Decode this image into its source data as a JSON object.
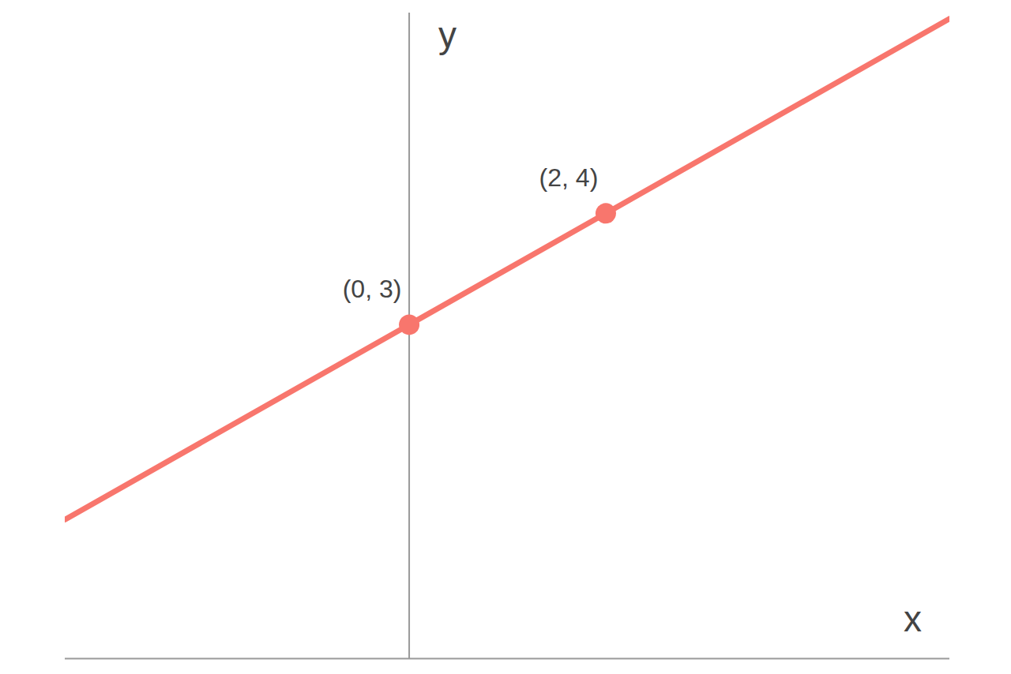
{
  "chart_data": {
    "type": "line",
    "x_label": "x",
    "y_label": "y",
    "x": [
      -3.5,
      0,
      2,
      5.5
    ],
    "values": [
      1.25,
      3,
      4,
      5.75
    ],
    "color": "#f8766d",
    "xlim": [
      -3.5,
      5.5
    ],
    "ylim": [
      0,
      5.8
    ],
    "xticks": [],
    "yticks": [],
    "tick_labels": false,
    "grid": false,
    "marker": "none",
    "annotations": [
      {
        "x": 0,
        "y": 3,
        "label": "(0, 3)"
      },
      {
        "x": 2,
        "y": 4,
        "label": "(2, 4)"
      }
    ]
  }
}
